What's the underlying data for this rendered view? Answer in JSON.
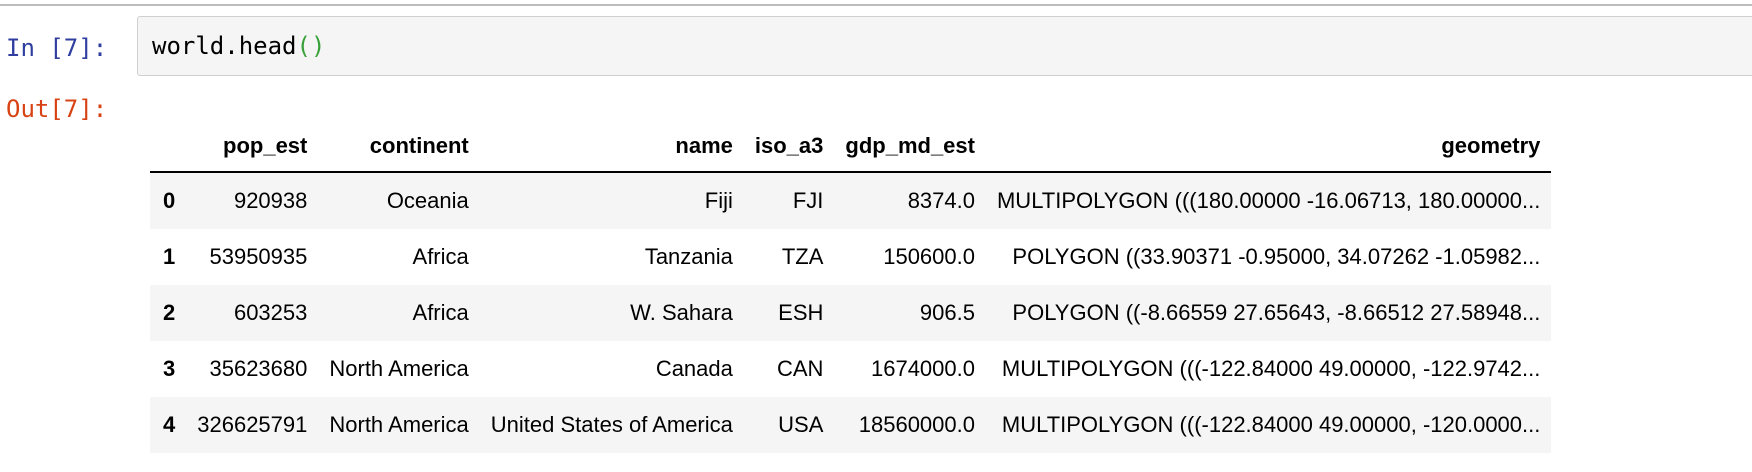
{
  "cell": {
    "in_prompt": "In [7]:",
    "code_text": "world.head",
    "code_parens": "()",
    "out_prompt": "Out[7]:"
  },
  "table": {
    "columns": [
      "",
      "pop_est",
      "continent",
      "name",
      "iso_a3",
      "gdp_md_est",
      "geometry"
    ],
    "rows": [
      [
        "0",
        "920938",
        "Oceania",
        "Fiji",
        "FJI",
        "8374.0",
        "MULTIPOLYGON (((180.00000 -16.06713, 180.00000..."
      ],
      [
        "1",
        "53950935",
        "Africa",
        "Tanzania",
        "TZA",
        "150600.0",
        "POLYGON ((33.90371 -0.95000, 34.07262 -1.05982..."
      ],
      [
        "2",
        "603253",
        "Africa",
        "W. Sahara",
        "ESH",
        "906.5",
        "POLYGON ((-8.66559 27.65643, -8.66512 27.58948..."
      ],
      [
        "3",
        "35623680",
        "North America",
        "Canada",
        "CAN",
        "1674000.0",
        "MULTIPOLYGON (((-122.84000 49.00000, -122.9742..."
      ],
      [
        "4",
        "326625791",
        "North America",
        "United States of America",
        "USA",
        "18560000.0",
        "MULTIPOLYGON (((-122.84000 49.00000, -120.0000..."
      ]
    ]
  },
  "colors": {
    "in_prompt": "#303f9f",
    "out_prompt": "#d84315",
    "paren": "#3aa13a",
    "stripe": "#f5f5f5"
  }
}
